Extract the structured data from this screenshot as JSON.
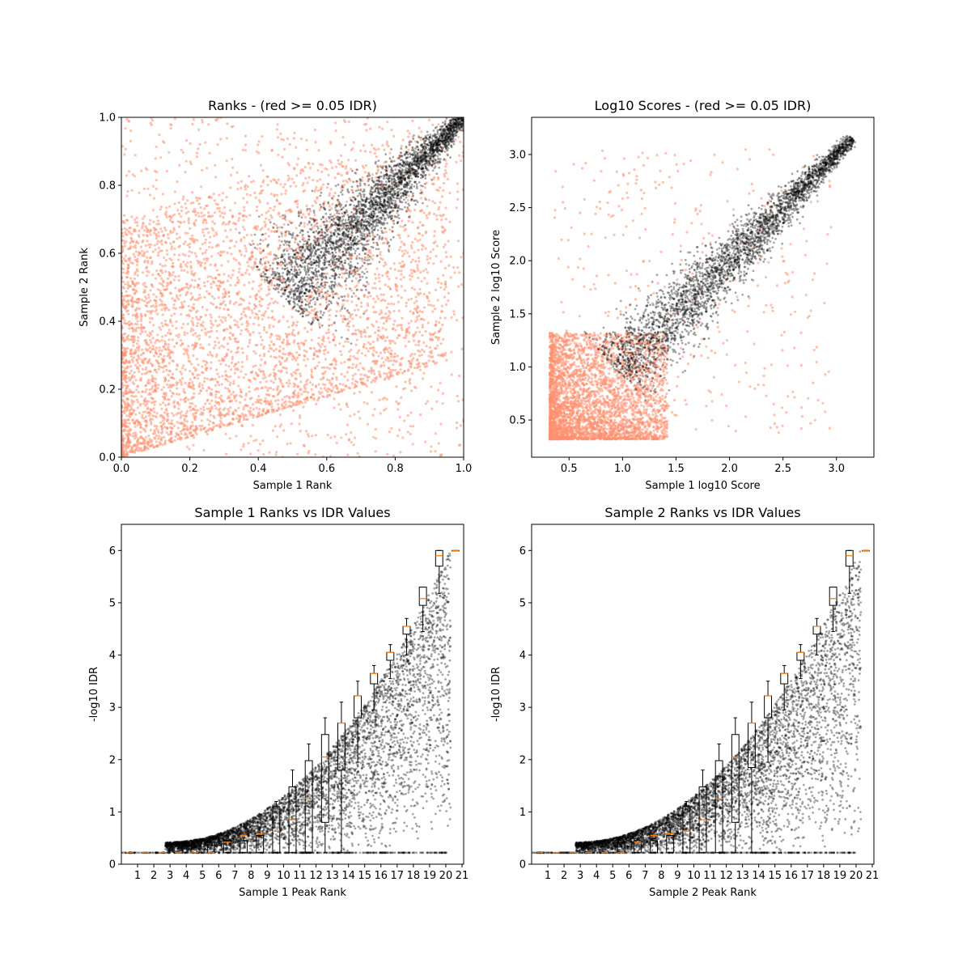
{
  "chart_data": [
    {
      "type": "scatter",
      "title": "Ranks - (red >= 0.05 IDR)",
      "xlabel": "Sample 1 Rank",
      "ylabel": "Sample 2 Rank",
      "xlim": [
        0,
        1
      ],
      "ylim": [
        0,
        1
      ],
      "xticks": [
        "0.0",
        "0.2",
        "0.4",
        "0.6",
        "0.8",
        "1.0"
      ],
      "yticks": [
        "0.0",
        "0.2",
        "0.4",
        "0.6",
        "0.8",
        "1.0"
      ],
      "grid": false,
      "legend": "none",
      "series": [
        {
          "color": "#ff9070",
          "description_points": [
            [
              0.05,
              0.1
            ],
            [
              0.2,
              0.3
            ],
            [
              0.35,
              0.5
            ],
            [
              0.5,
              0.55
            ],
            [
              0.6,
              0.45
            ],
            [
              0.3,
              0.15
            ],
            [
              0.1,
              0.5
            ],
            [
              0.45,
              0.25
            ],
            [
              0.7,
              0.1
            ],
            [
              0.15,
              0.9
            ]
          ]
        },
        {
          "color": "#000000",
          "description_points": [
            [
              0.47,
              0.47
            ],
            [
              0.55,
              0.58
            ],
            [
              0.62,
              0.66
            ],
            [
              0.7,
              0.73
            ],
            [
              0.8,
              0.81
            ],
            [
              0.9,
              0.9
            ],
            [
              1.0,
              1.0
            ]
          ]
        }
      ]
    },
    {
      "type": "scatter",
      "title": "Log10 Scores - (red >= 0.05 IDR)",
      "xlabel": "Sample 1 log10 Score",
      "ylabel": "Sample 2 log10 Score",
      "xlim": [
        0.15,
        3.35
      ],
      "ylim": [
        0.15,
        3.35
      ],
      "xticks": [
        "0.5",
        "1.0",
        "1.5",
        "2.0",
        "2.5",
        "3.0"
      ],
      "yticks": [
        "0.5",
        "1.0",
        "1.5",
        "2.0",
        "2.5",
        "3.0"
      ],
      "grid": false,
      "legend": "none",
      "series": [
        {
          "color": "#ff9070",
          "description_points": [
            [
              0.35,
              0.35
            ],
            [
              0.6,
              0.6
            ],
            [
              0.9,
              0.8
            ],
            [
              1.1,
              0.5
            ],
            [
              0.5,
              1.2
            ],
            [
              0.8,
              2.5
            ],
            [
              2.0,
              0.9
            ],
            [
              2.9,
              0.8
            ]
          ]
        },
        {
          "color": "#000000",
          "description_points": [
            [
              0.95,
              0.95
            ],
            [
              1.2,
              1.3
            ],
            [
              1.5,
              1.55
            ],
            [
              2.0,
              2.0
            ],
            [
              2.5,
              2.5
            ],
            [
              3.0,
              3.0
            ],
            [
              3.2,
              3.2
            ]
          ]
        }
      ]
    },
    {
      "type": "scatter",
      "title": "Sample 1 Ranks vs IDR Values",
      "xlabel": "Sample 1 Peak Rank",
      "ylabel": "-log10 IDR",
      "xlim": [
        0,
        21
      ],
      "ylim": [
        0,
        6.5
      ],
      "xticks": [
        "1",
        "2",
        "3",
        "4",
        "5",
        "6",
        "7",
        "8",
        "9",
        "10",
        "11",
        "12",
        "13",
        "14",
        "15",
        "16",
        "17",
        "18",
        "19",
        "20",
        "21"
      ],
      "yticks": [
        "0",
        "1",
        "2",
        "3",
        "4",
        "5",
        "6"
      ],
      "grid": false,
      "legend": "none",
      "boxes": {
        "positions": [
          1,
          2,
          3,
          4,
          5,
          6,
          7,
          8,
          9,
          10,
          11,
          12,
          13,
          14,
          15,
          16,
          17,
          18,
          19,
          20,
          21
        ],
        "q1": [
          0.22,
          0.22,
          0.22,
          0.22,
          0.22,
          0.22,
          0.22,
          0.22,
          0.22,
          0.22,
          0.22,
          0.22,
          0.8,
          1.8,
          2.8,
          3.45,
          3.9,
          4.4,
          4.95,
          5.7,
          6.0
        ],
        "median": [
          0.22,
          0.22,
          0.22,
          0.22,
          0.22,
          0.22,
          0.42,
          0.55,
          0.58,
          0.63,
          0.85,
          1.25,
          2.05,
          2.7,
          3.22,
          3.65,
          4.05,
          4.55,
          5.08,
          5.9,
          6.0
        ],
        "q3": [
          0.22,
          0.22,
          0.22,
          0.22,
          0.22,
          0.42,
          0.45,
          0.45,
          0.55,
          1.1,
          1.48,
          1.98,
          2.48,
          2.7,
          3.22,
          3.65,
          4.05,
          4.55,
          5.3,
          6.0,
          6.0
        ],
        "whisker_low": [
          0.22,
          0.22,
          0.22,
          0.22,
          0.22,
          0.22,
          0.22,
          0.22,
          0.22,
          0.22,
          0.22,
          0.22,
          0.22,
          0.22,
          1.95,
          2.95,
          3.55,
          4.0,
          4.45,
          5.18,
          6.0
        ],
        "whisker_high": [
          0.22,
          0.22,
          0.22,
          0.22,
          0.22,
          0.5,
          0.5,
          0.5,
          0.7,
          1.2,
          1.8,
          2.3,
          2.8,
          3.1,
          3.5,
          3.8,
          4.2,
          4.7,
          5.3,
          6.0,
          6.0
        ]
      }
    },
    {
      "type": "scatter",
      "title": "Sample 2 Ranks vs IDR Values",
      "xlabel": "Sample 2 Peak Rank",
      "ylabel": "-log10 IDR",
      "xlim": [
        0,
        21
      ],
      "ylim": [
        0,
        6.5
      ],
      "xticks": [
        "1",
        "2",
        "3",
        "4",
        "5",
        "6",
        "7",
        "8",
        "9",
        "10",
        "11",
        "12",
        "13",
        "14",
        "15",
        "16",
        "17",
        "18",
        "19",
        "20",
        "21"
      ],
      "yticks": [
        "0",
        "1",
        "2",
        "3",
        "4",
        "5",
        "6"
      ],
      "grid": false,
      "legend": "none",
      "boxes": {
        "positions": [
          1,
          2,
          3,
          4,
          5,
          6,
          7,
          8,
          9,
          10,
          11,
          12,
          13,
          14,
          15,
          16,
          17,
          18,
          19,
          20,
          21
        ],
        "q1": [
          0.22,
          0.22,
          0.22,
          0.22,
          0.22,
          0.22,
          0.22,
          0.22,
          0.22,
          0.22,
          0.22,
          0.22,
          0.8,
          1.85,
          2.8,
          3.45,
          3.9,
          4.4,
          4.95,
          5.7,
          6.0
        ],
        "median": [
          0.22,
          0.22,
          0.22,
          0.22,
          0.22,
          0.22,
          0.42,
          0.55,
          0.58,
          0.63,
          0.85,
          1.25,
          2.05,
          2.7,
          3.22,
          3.65,
          4.05,
          4.55,
          5.08,
          5.9,
          6.0
        ],
        "q3": [
          0.22,
          0.22,
          0.22,
          0.22,
          0.22,
          0.42,
          0.45,
          0.45,
          0.55,
          1.1,
          1.48,
          1.98,
          2.48,
          2.7,
          3.22,
          3.65,
          4.05,
          4.55,
          5.3,
          6.0,
          6.0
        ],
        "whisker_low": [
          0.22,
          0.22,
          0.22,
          0.22,
          0.22,
          0.22,
          0.22,
          0.22,
          0.22,
          0.22,
          0.22,
          0.22,
          0.22,
          0.22,
          1.95,
          2.95,
          3.55,
          4.0,
          4.45,
          5.18,
          6.0
        ],
        "whisker_high": [
          0.22,
          0.22,
          0.22,
          0.22,
          0.22,
          0.5,
          0.5,
          0.5,
          0.7,
          1.2,
          1.8,
          2.3,
          2.8,
          3.1,
          3.5,
          3.8,
          4.2,
          4.7,
          5.3,
          6.0,
          6.0
        ]
      }
    }
  ]
}
